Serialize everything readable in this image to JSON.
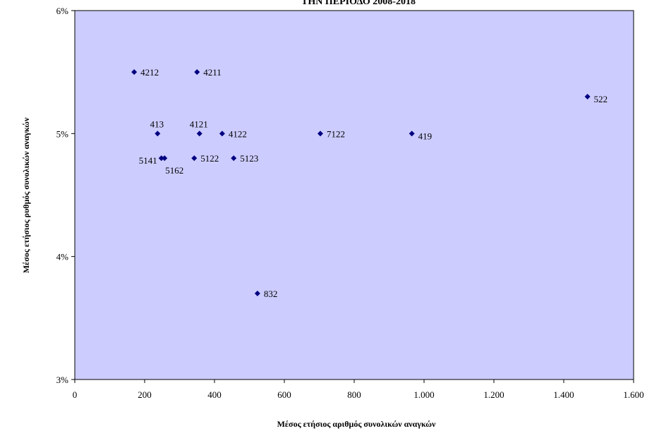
{
  "chart_data": {
    "type": "scatter",
    "title": "ΤΗΝ ΠΕΡΙΟΔΟ 2008-2018",
    "xlabel": "Μέσος ετήσιος αριθμός συνολικών αναγκών",
    "ylabel": "Μέσος ετήσιος ρυθμός συνολικών αναγκών",
    "xlim": [
      0,
      1600
    ],
    "ylim": [
      0.03,
      0.06
    ],
    "xticks": [
      {
        "value": 0,
        "label": "0"
      },
      {
        "value": 200,
        "label": "200"
      },
      {
        "value": 400,
        "label": "400"
      },
      {
        "value": 600,
        "label": "600"
      },
      {
        "value": 800,
        "label": "800"
      },
      {
        "value": 1000,
        "label": "1.000"
      },
      {
        "value": 1200,
        "label": "1.200"
      },
      {
        "value": 1400,
        "label": "1.400"
      },
      {
        "value": 1600,
        "label": "1.600"
      }
    ],
    "yticks": [
      {
        "value": 0.03,
        "label": "3%"
      },
      {
        "value": 0.04,
        "label": "4%"
      },
      {
        "value": 0.05,
        "label": "5%"
      },
      {
        "value": 0.06,
        "label": "6%"
      }
    ],
    "grid": false,
    "colors": {
      "plot_bg": "#ccccff",
      "marker": "#000080",
      "axis": "#000000"
    },
    "points": [
      {
        "label": "4212",
        "x": 170,
        "y": 0.055,
        "label_pos": "right"
      },
      {
        "label": "4211",
        "x": 350,
        "y": 0.055,
        "label_pos": "right"
      },
      {
        "label": "522",
        "x": 1468,
        "y": 0.053,
        "label_pos": "right-below"
      },
      {
        "label": "413",
        "x": 237,
        "y": 0.05,
        "label_pos": "above"
      },
      {
        "label": "4121",
        "x": 357,
        "y": 0.05,
        "label_pos": "above"
      },
      {
        "label": "4122",
        "x": 422,
        "y": 0.05,
        "label_pos": "right"
      },
      {
        "label": "7122",
        "x": 703,
        "y": 0.05,
        "label_pos": "right"
      },
      {
        "label": "419",
        "x": 965,
        "y": 0.05,
        "label_pos": "right-below"
      },
      {
        "label": "5141",
        "x": 248,
        "y": 0.048,
        "label_pos": "left"
      },
      {
        "label": "5162",
        "x": 257,
        "y": 0.048,
        "label_pos": "below"
      },
      {
        "label": "5122",
        "x": 342,
        "y": 0.048,
        "label_pos": "right"
      },
      {
        "label": "5123",
        "x": 455,
        "y": 0.048,
        "label_pos": "right"
      },
      {
        "label": "832",
        "x": 523,
        "y": 0.037,
        "label_pos": "right"
      }
    ]
  }
}
